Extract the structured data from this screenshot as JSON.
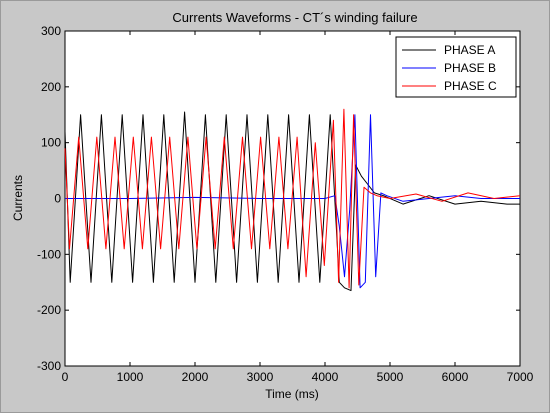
{
  "chart_data": {
    "type": "line",
    "title": "Currents Waveforms - CT´s winding failure",
    "xlabel": "Time (ms)",
    "ylabel": "Currents",
    "xlim": [
      0,
      7000
    ],
    "ylim": [
      -300,
      300
    ],
    "xticks": [
      0,
      1000,
      2000,
      3000,
      4000,
      5000,
      6000,
      7000
    ],
    "yticks": [
      -300,
      -200,
      -100,
      0,
      100,
      200,
      300
    ],
    "grid": false,
    "legend_position": "top-right",
    "series": [
      {
        "name": "PHASE A",
        "color": "#000000",
        "x": [
          0,
          80,
          240,
          400,
          560,
          720,
          880,
          1040,
          1200,
          1360,
          1520,
          1680,
          1840,
          2000,
          2160,
          2320,
          2480,
          2640,
          2800,
          2960,
          3120,
          3280,
          3440,
          3600,
          3760,
          3920,
          4080,
          4220,
          4300,
          4400,
          4470,
          4560,
          4660,
          4760,
          4900,
          5200,
          5600,
          6000,
          6400,
          6800,
          7000
        ],
        "values": [
          120,
          -150,
          150,
          -150,
          150,
          -150,
          150,
          -150,
          150,
          -150,
          150,
          -150,
          155,
          -150,
          150,
          -150,
          150,
          -150,
          150,
          -150,
          150,
          -150,
          150,
          -150,
          150,
          -150,
          150,
          -150,
          -160,
          -165,
          60,
          40,
          25,
          10,
          5,
          -10,
          5,
          -10,
          -5,
          -10,
          -10
        ]
      },
      {
        "name": "PHASE B",
        "color": "#0000ff",
        "x": [
          0,
          1000,
          2000,
          3000,
          4000,
          4150,
          4220,
          4300,
          4380,
          4460,
          4540,
          4620,
          4700,
          4780,
          4860,
          4950,
          5200,
          5600,
          6000,
          6400,
          7000
        ],
        "values": [
          0,
          0,
          2,
          0,
          0,
          5,
          -50,
          -140,
          -20,
          150,
          -160,
          -150,
          150,
          -140,
          10,
          5,
          -5,
          0,
          5,
          0,
          0
        ]
      },
      {
        "name": "PHASE C",
        "color": "#ff0000",
        "x": [
          0,
          70,
          210,
          350,
          490,
          630,
          770,
          910,
          1050,
          1190,
          1330,
          1470,
          1610,
          1750,
          1890,
          2030,
          2170,
          2310,
          2450,
          2590,
          2730,
          2870,
          3010,
          3150,
          3290,
          3430,
          3570,
          3710,
          3850,
          3990,
          4130,
          4210,
          4290,
          4370,
          4440,
          4520,
          4600,
          4700,
          4800,
          5000,
          5400,
          5800,
          6200,
          6600,
          7000
        ],
        "values": [
          90,
          -90,
          110,
          -90,
          110,
          -90,
          110,
          -90,
          110,
          -90,
          110,
          -90,
          110,
          -90,
          110,
          -90,
          110,
          -90,
          110,
          -90,
          110,
          -90,
          110,
          -90,
          110,
          -90,
          110,
          -140,
          100,
          -120,
          140,
          -150,
          160,
          -160,
          150,
          -155,
          20,
          10,
          5,
          0,
          8,
          -5,
          10,
          0,
          5
        ]
      }
    ]
  }
}
